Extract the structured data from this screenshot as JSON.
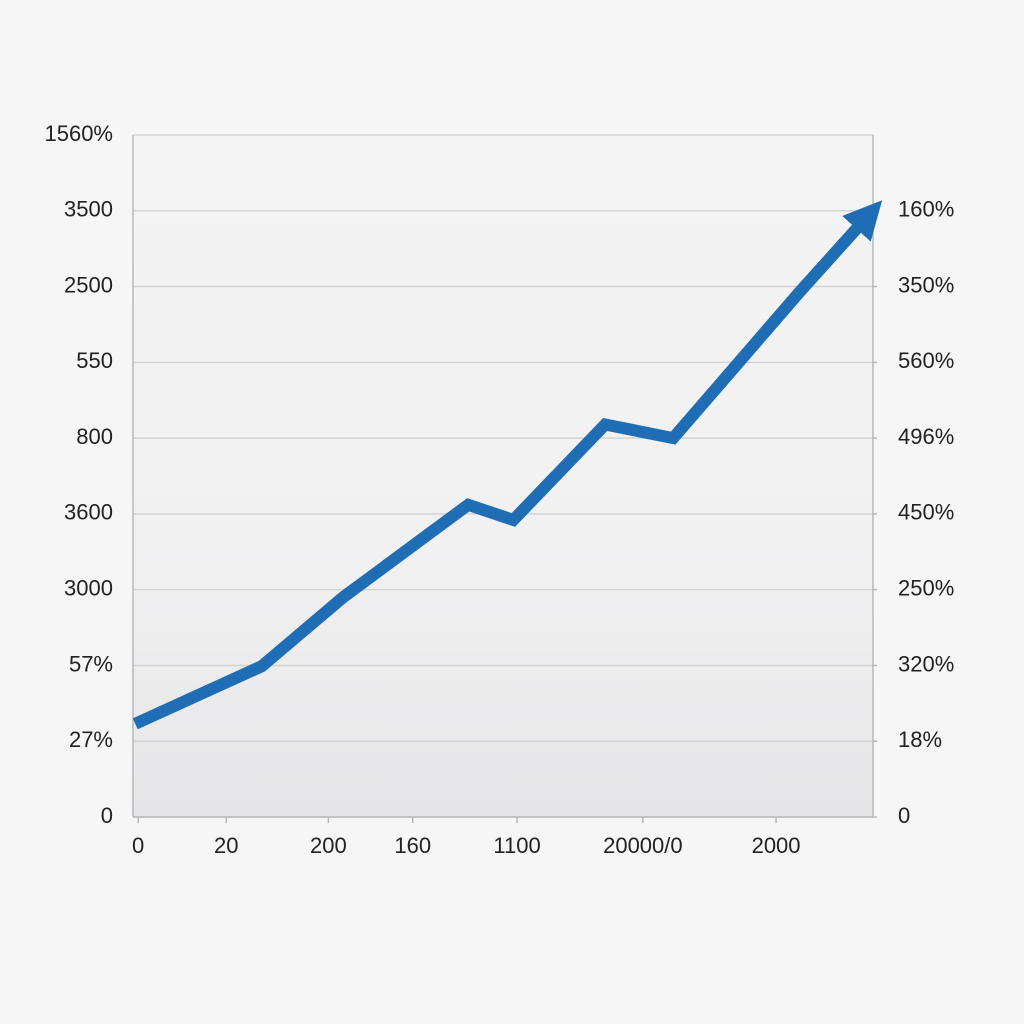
{
  "chart_data": {
    "type": "line",
    "x": [
      0.3,
      17.4,
      28.4,
      45.3,
      51.4,
      63.8,
      73,
      90.1,
      99.5
    ],
    "values": [
      1.23,
      1.99,
      2.9,
      4.12,
      3.92,
      5.18,
      5.0,
      6.93,
      7.95
    ],
    "color": "#1f6db5",
    "xlim": [
      0,
      100
    ],
    "xticks": [
      {
        "value": 0.7,
        "label": "0"
      },
      {
        "value": 12.6,
        "label": "20"
      },
      {
        "value": 26.4,
        "label": "200"
      },
      {
        "value": 37.8,
        "label": "160"
      },
      {
        "value": 51.9,
        "label": "1100"
      },
      {
        "value": 68.9,
        "label": "20000/0"
      },
      {
        "value": 86.9,
        "label": "2000"
      }
    ],
    "ylim": [
      0,
      9
    ],
    "yticks": [
      {
        "value": 0,
        "label": "0"
      },
      {
        "value": 1,
        "label": "27%"
      },
      {
        "value": 2,
        "label": "57%"
      },
      {
        "value": 3,
        "label": "3000"
      },
      {
        "value": 4,
        "label": "3600"
      },
      {
        "value": 5,
        "label": "800"
      },
      {
        "value": 6,
        "label": "550"
      },
      {
        "value": 7,
        "label": "2500"
      },
      {
        "value": 8,
        "label": "3500"
      },
      {
        "value": 9,
        "label": "1560%"
      }
    ],
    "y2lim": [
      0,
      9
    ],
    "y2ticks": [
      {
        "value": 0,
        "label": "0"
      },
      {
        "value": 1,
        "label": "18%"
      },
      {
        "value": 2,
        "label": "320%"
      },
      {
        "value": 3,
        "label": "250%"
      },
      {
        "value": 4,
        "label": "450%"
      },
      {
        "value": 5,
        "label": "496%"
      },
      {
        "value": 6,
        "label": "560%"
      },
      {
        "value": 7,
        "label": "350%"
      },
      {
        "value": 8,
        "label": "160%"
      }
    ],
    "grid": true
  }
}
